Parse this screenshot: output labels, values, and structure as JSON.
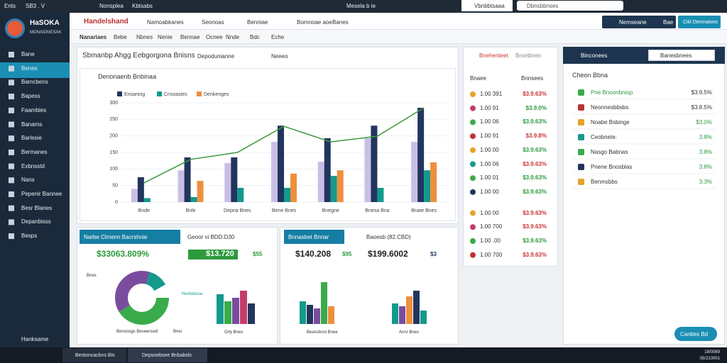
{
  "browser": {
    "tabs": [
      "Ents",
      "SB3 . V",
      "Nonsplea",
      "Kbtsabs"
    ],
    "center": "Mesela b ie",
    "right_tab": "Vbnbbtsaaa",
    "address": "Dbnsbbnses"
  },
  "logo": {
    "title": "HaSOKA",
    "subtitle": "MONAIDNESAK"
  },
  "sidebar": {
    "items": [
      "Bane",
      "Benes",
      "Bamcbens",
      "Bapess",
      "Faambies",
      "Banams",
      "Barlesie",
      "Bermanes",
      "Exbnsstd",
      "Nans",
      "Pepenir Bannee",
      "Besr Blanes",
      "Depanbisss",
      "Besps"
    ],
    "footer": "Hanksame"
  },
  "header": {
    "title": "Handelshand",
    "nav": [
      "Namoabkanes",
      "Seonoas",
      "Benniae",
      "Bomnoae aoe",
      "Banes"
    ],
    "right": [
      "Nemseane",
      "Bae",
      "Cikl Demnaions"
    ],
    "subnav": [
      "Nanariaes",
      "Bebe",
      "Nbnes",
      "Nenie",
      "Bennae",
      "Ocnee",
      "Nnde",
      "Bdc",
      "Eche"
    ]
  },
  "main_panel": {
    "title": "Sbmanbp Ahgg Eebgorgona Bnisns",
    "dropdown": "Depodunianne",
    "button": "Neeeo",
    "card_title": "Denonaenb Bnbinaa"
  },
  "main_chart": {
    "type": "bar",
    "categories": [
      "Bnde",
      "Bnle",
      "Depna Bnes",
      "Bene Bnes",
      "Bnegne",
      "Bnesa Bna",
      "Bnaie Bnes"
    ],
    "series": [
      {
        "color": "#c9bfe6",
        "values": [
          40,
          96,
          118,
          182,
          122,
          193,
          182
        ]
      },
      {
        "name": "Ensaning",
        "color": "#22355e",
        "values": [
          75,
          135,
          135,
          231,
          193,
          231,
          285
        ]
      },
      {
        "name": "Cnsoasies",
        "color": "#139a8c",
        "values": [
          12,
          15,
          43,
          43,
          79,
          43,
          96
        ]
      },
      {
        "name": "Denkenges",
        "color": "#ee8f3d",
        "values": [
          0,
          64,
          0,
          86,
          96,
          0,
          120
        ]
      }
    ],
    "line": {
      "color": "#3a9a3a",
      "values": [
        58,
        129,
        150,
        229,
        182,
        199,
        285
      ]
    },
    "ylim": [
      0,
      300
    ],
    "yticks": [
      0,
      50,
      100,
      150,
      200,
      250,
      300
    ]
  },
  "list_panel": {
    "tabs": [
      "Bnehenteet",
      "Brsetbnen"
    ],
    "columns": [
      "Bnaee",
      "Bnnsees"
    ],
    "rows": [
      [
        "1.00 391",
        "$3.9.63%"
      ],
      [
        "1.00 91",
        "$3.9.0%"
      ],
      [
        "1.00 06",
        "$3.9.63%"
      ],
      [
        "1.00 91",
        "$3.9.8%"
      ],
      [
        "1.00 00",
        "$3.9.63%"
      ],
      [
        "1.00 06",
        "$3.9.63%"
      ],
      [
        "1.00 01",
        "$3.9.63%"
      ],
      [
        "1.00 00",
        "$3.9.63%"
      ],
      [
        "1.00 00",
        "$3.9.63%"
      ],
      [
        "1.00 700",
        "$3.9.63%"
      ],
      [
        "1.00 .00",
        "$3.9.63%"
      ],
      [
        "1.00 700",
        "$3.9.63%"
      ]
    ]
  },
  "right_panel": {
    "title": "Binconees",
    "select": "Banesbnees",
    "heading": "Cheon Bbna",
    "rows": [
      [
        "Pne Bnoonbniop",
        "$3.9.5%"
      ],
      [
        "Neonnesbbsbs",
        "$3.8.5%"
      ],
      [
        "Noabe Bsbinge",
        "$3.0%"
      ],
      [
        "Ceobnete:",
        "3.8%"
      ],
      [
        "Nasgo Babnas",
        "3.8%"
      ],
      [
        "Pnene Bnosblas",
        "3.8%"
      ],
      [
        "Benmsbbs",
        "3.3%"
      ]
    ],
    "button": "Canties Bd"
  },
  "bottom_left": {
    "title": "Narbe Clmenn Bacrshnie",
    "subtitle": "Geoor vi BDD.D30",
    "value": "$33063.809%",
    "badge": "$13.720",
    "small": "$55",
    "donut_label": "Nerbsbsoa",
    "axis": "Bnes",
    "legend": "Benosogs Beseensed",
    "legend2": "Bnei",
    "bars_label": "Orly Bnes"
  },
  "bottom_right": {
    "title": "Bnnasbet Bnnar",
    "subtitle": "Baoesb (82.CBD)",
    "value": "$140.208",
    "small": "$95",
    "value2": "$199.6002",
    "small2": "$3",
    "label1": "Beansbnsl Bnee",
    "label2": "Annr Bnes"
  },
  "taskbar": {
    "apps": [
      "Bestoncacbns Bis",
      "Depsnebsee Bnbabsls"
    ],
    "clock": [
      "18/0089",
      "05/210001"
    ]
  }
}
